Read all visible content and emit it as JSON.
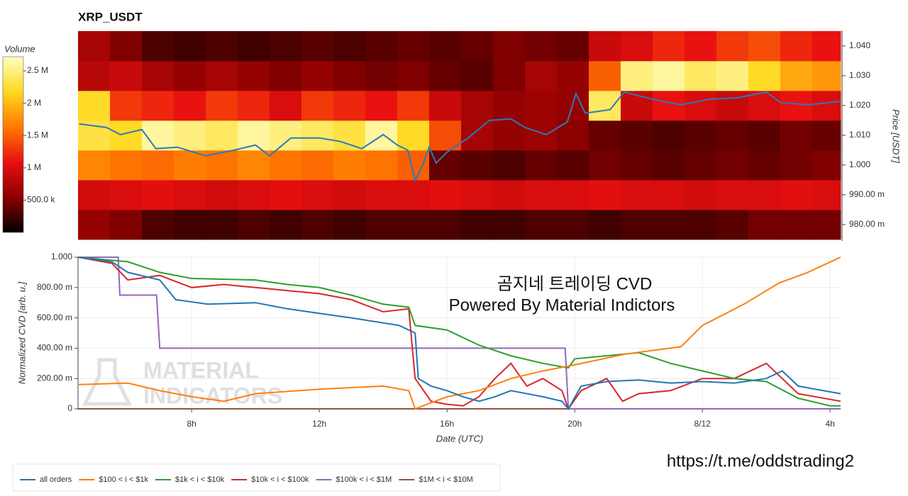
{
  "chart_data": [
    {
      "type": "heatmap",
      "title": "XRP_USDT",
      "colorbar_label": "Volume",
      "y_label": "Price [USDT]",
      "xlim": [
        4.44,
        28.33
      ],
      "x_bins": [
        4.44,
        5.44,
        6.44,
        7.44,
        8.44,
        9.44,
        10.44,
        11.44,
        12.44,
        13.44,
        14.44,
        15.44,
        16.44,
        17.44,
        18.44,
        19.44,
        20.44,
        21.44,
        22.44,
        23.44,
        24.44,
        25.44,
        26.44,
        27.44,
        28.33
      ],
      "y_bins": [
        0.975,
        0.985,
        0.995,
        1.005,
        1.015,
        1.025,
        1.035,
        1.045
      ],
      "z": [
        [
          600000,
          500000,
          300000,
          250000,
          250000,
          300000,
          250000,
          300000,
          250000,
          300000,
          300000,
          300000,
          250000,
          250000,
          300000,
          300000,
          250000,
          300000,
          300000,
          300000,
          350000,
          450000,
          450000,
          450000
        ],
        [
          950000,
          1000000,
          1050000,
          1000000,
          950000,
          1000000,
          1050000,
          1000000,
          950000,
          1000000,
          1000000,
          1050000,
          1000000,
          950000,
          1000000,
          1000000,
          1050000,
          1000000,
          1000000,
          950000,
          1000000,
          1000000,
          1050000,
          1000000
        ],
        [
          1700000,
          1600000,
          1550000,
          1650000,
          1600000,
          1700000,
          1600000,
          1550000,
          1650000,
          1600000,
          1500000,
          400000,
          350000,
          300000,
          400000,
          350000,
          450000,
          400000,
          350000,
          400000,
          450000,
          400000,
          450000,
          500000
        ],
        [
          2300000,
          2200000,
          2600000,
          2500000,
          2400000,
          2600000,
          2500000,
          2400000,
          2300000,
          2600000,
          2200000,
          1400000,
          700000,
          600000,
          650000,
          550000,
          400000,
          350000,
          300000,
          350000,
          400000,
          350000,
          450000,
          400000
        ],
        [
          2200000,
          1300000,
          1200000,
          1100000,
          1300000,
          1200000,
          1000000,
          1300000,
          1200000,
          1100000,
          1300000,
          900000,
          700000,
          600000,
          650000,
          600000,
          2400000,
          900000,
          1100000,
          1000000,
          900000,
          1000000,
          1100000,
          1000000
        ],
        [
          800000,
          900000,
          700000,
          600000,
          700000,
          600000,
          500000,
          600000,
          500000,
          450000,
          500000,
          400000,
          350000,
          500000,
          700000,
          600000,
          1500000,
          2500000,
          2600000,
          2400000,
          2500000,
          2200000,
          1900000,
          1800000
        ],
        [
          700000,
          500000,
          300000,
          250000,
          300000,
          250000,
          300000,
          350000,
          300000,
          350000,
          400000,
          350000,
          400000,
          500000,
          450000,
          400000,
          900000,
          1000000,
          1200000,
          1100000,
          1300000,
          1400000,
          1200000,
          1100000
        ]
      ],
      "zlim": [
        0,
        2720000
      ],
      "zticks": [
        {
          "value": 500000,
          "label": "500.0 k"
        },
        {
          "value": 1000000,
          "label": "1 M"
        },
        {
          "value": 1500000,
          "label": "1.5 M"
        },
        {
          "value": 2000000,
          "label": "2 M"
        },
        {
          "value": 2500000,
          "label": "2.5 M"
        }
      ],
      "colorscale": [
        "#000000",
        "#8b0000",
        "#e81010",
        "#ff7a00",
        "#ffd820",
        "#ffffc0"
      ],
      "ylim": [
        0.9745,
        1.0452
      ],
      "yticks": [
        {
          "value": 0.98,
          "label": "980.00 m"
        },
        {
          "value": 0.99,
          "label": "990.00 m"
        },
        {
          "value": 1.0,
          "label": "1.000"
        },
        {
          "value": 1.01,
          "label": "1.010"
        },
        {
          "value": 1.02,
          "label": "1.020"
        },
        {
          "value": 1.03,
          "label": "1.030"
        },
        {
          "value": 1.04,
          "label": "1.040"
        }
      ],
      "price_line": {
        "color": "#2a7ab8",
        "x": [
          4.48,
          5.33,
          5.77,
          6.44,
          6.88,
          7.55,
          8.44,
          9.33,
          10.0,
          10.44,
          11.11,
          12.0,
          12.66,
          13.33,
          14.0,
          14.44,
          14.77,
          15.0,
          15.22,
          15.44,
          15.66,
          16.0,
          16.66,
          17.33,
          18.0,
          18.44,
          19.11,
          19.77,
          20.04,
          20.33,
          21.11,
          21.55,
          22.44,
          23.33,
          24.22,
          25.11,
          26.0,
          26.44,
          27.33,
          28.33
        ],
        "values": [
          1.0138,
          1.0126,
          1.0102,
          1.0119,
          1.0055,
          1.006,
          1.0031,
          1.005,
          1.0067,
          1.0031,
          1.0091,
          1.0091,
          1.0079,
          1.0055,
          1.0102,
          1.0067,
          1.005,
          0.9948,
          0.9995,
          1.006,
          1.0007,
          1.0043,
          1.0091,
          1.015,
          1.0155,
          1.0126,
          1.0102,
          1.0145,
          1.024,
          1.0174,
          1.0186,
          1.0245,
          1.0221,
          1.0202,
          1.0221,
          1.0226,
          1.0245,
          1.021,
          1.0202,
          1.0214
        ]
      }
    },
    {
      "type": "line",
      "y_label": "Normalized CVD [arb. u.]",
      "x_label": "Date (UTC)",
      "grid": true,
      "xlim": [
        4.44,
        28.33
      ],
      "xticks": [
        {
          "value": 8,
          "label": "8h"
        },
        {
          "value": 12,
          "label": "12h"
        },
        {
          "value": 16,
          "label": "16h"
        },
        {
          "value": 20,
          "label": "20h"
        },
        {
          "value": 24,
          "label": "8/12"
        },
        {
          "value": 28,
          "label": "4h"
        }
      ],
      "ylim": [
        0,
        1
      ],
      "yticks": [
        0,
        {
          "value": 0.2,
          "label": "200.00 m"
        },
        {
          "value": 0.4,
          "label": "400.00 m"
        },
        {
          "value": 0.6,
          "label": "600.00 m"
        },
        {
          "value": 0.8,
          "label": "800.00 m"
        },
        {
          "value": 1,
          "label": "1.000"
        }
      ],
      "series": [
        {
          "name": "all orders",
          "color": "#1f77b4",
          "x": [
            4.44,
            5.5,
            6.0,
            7.0,
            7.5,
            8.5,
            10,
            11,
            12,
            13,
            14.5,
            15,
            15.1,
            15.5,
            16,
            16.5,
            17,
            17.5,
            18,
            19,
            19.6,
            19.8,
            20.2,
            21,
            22,
            23,
            24,
            25,
            26,
            26.5,
            27,
            28.33
          ],
          "values": [
            1.0,
            0.97,
            0.9,
            0.85,
            0.72,
            0.69,
            0.7,
            0.66,
            0.63,
            0.6,
            0.55,
            0.5,
            0.2,
            0.15,
            0.12,
            0.08,
            0.05,
            0.08,
            0.12,
            0.08,
            0.05,
            0.0,
            0.15,
            0.18,
            0.19,
            0.17,
            0.18,
            0.17,
            0.2,
            0.25,
            0.15,
            0.1
          ]
        },
        {
          "name": "$100 < i < $1k",
          "color": "#ff7f0e",
          "x": [
            4.44,
            6,
            7,
            8,
            9,
            10,
            12,
            14,
            14.8,
            15,
            16,
            17,
            18,
            19,
            20,
            21.55,
            23.33,
            24,
            25.3,
            26.4,
            27.3,
            28.33
          ],
          "values": [
            0.16,
            0.17,
            0.12,
            0.08,
            0.05,
            0.1,
            0.13,
            0.15,
            0.12,
            0.0,
            0.08,
            0.12,
            0.2,
            0.25,
            0.29,
            0.36,
            0.41,
            0.55,
            0.69,
            0.83,
            0.9,
            1.0
          ]
        },
        {
          "name": "$1k < i < $10k",
          "color": "#2ca02c",
          "x": [
            4.44,
            6,
            7,
            8,
            10,
            11,
            12,
            13,
            14,
            14.8,
            15,
            16,
            17,
            18,
            19,
            19.8,
            20,
            21,
            22,
            23,
            24,
            25,
            26,
            27,
            28,
            28.33
          ],
          "values": [
            1.0,
            0.97,
            0.9,
            0.86,
            0.85,
            0.82,
            0.8,
            0.75,
            0.69,
            0.67,
            0.55,
            0.52,
            0.42,
            0.35,
            0.3,
            0.27,
            0.33,
            0.35,
            0.37,
            0.3,
            0.25,
            0.2,
            0.18,
            0.07,
            0.02,
            0.02
          ]
        },
        {
          "name": "$10k < i < $100k",
          "color": "#d62728",
          "x": [
            4.44,
            5.5,
            6,
            7,
            8,
            9,
            10,
            11,
            12,
            13,
            14,
            14.8,
            15,
            15.5,
            16,
            16.5,
            17,
            17.5,
            18,
            18.5,
            19,
            19.6,
            19.8,
            20.2,
            21,
            21.5,
            22,
            23,
            24,
            25,
            26,
            27,
            28.33
          ],
          "values": [
            1.0,
            0.96,
            0.85,
            0.88,
            0.8,
            0.82,
            0.8,
            0.78,
            0.76,
            0.72,
            0.64,
            0.66,
            0.2,
            0.05,
            0.03,
            0.02,
            0.08,
            0.2,
            0.3,
            0.15,
            0.2,
            0.12,
            0.0,
            0.12,
            0.2,
            0.05,
            0.1,
            0.12,
            0.2,
            0.2,
            0.3,
            0.1,
            0.05
          ]
        },
        {
          "name": "$100k < i < $1M",
          "color": "#9467bd",
          "x": [
            4.44,
            5.7,
            5.75,
            6.9,
            7.0,
            19.7,
            19.8,
            28.33
          ],
          "values": [
            1.0,
            1.0,
            0.75,
            0.75,
            0.4,
            0.4,
            0.0,
            0.0
          ]
        },
        {
          "name": "$1M < i < $10M",
          "color": "#8c564b",
          "x": [
            4.44,
            28.33
          ],
          "values": [
            0.0,
            0.0
          ]
        }
      ],
      "watermark": [
        "MATERIAL",
        "INDICATORS"
      ],
      "annotations": [
        "곰지네 트레이딩 CVD",
        "Powered By Material Indictors",
        "https://t.me/oddstrading2"
      ]
    }
  ]
}
